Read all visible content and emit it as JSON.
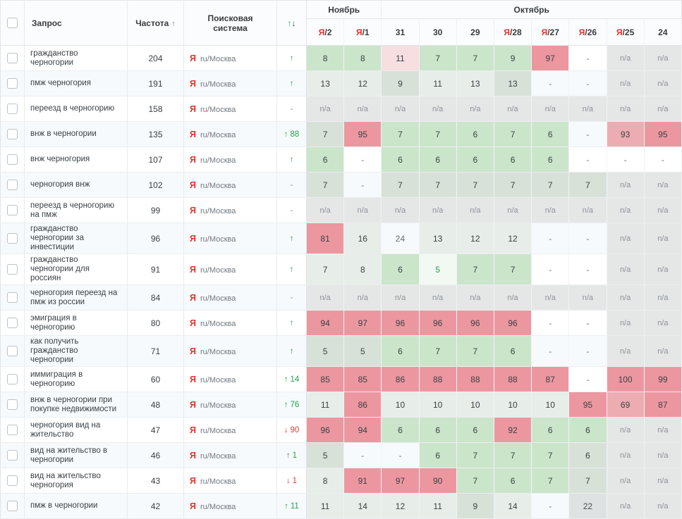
{
  "header": {
    "query": "Запрос",
    "frequency": "Частота",
    "frequency_sort_icon": "↑",
    "search_engine": "Поисковая система",
    "change_up_icon": "↑",
    "change_down_icon": "↓",
    "month_groups": [
      {
        "label": "Ноябрь",
        "span": 2
      },
      {
        "label": "Октябрь",
        "span": 8
      }
    ],
    "date_columns": [
      {
        "yandex_mark": "Я",
        "label": "/2"
      },
      {
        "yandex_mark": "Я",
        "label": "/1"
      },
      {
        "label": "31"
      },
      {
        "label": "30"
      },
      {
        "label": "29"
      },
      {
        "yandex_mark": "Я",
        "label": "/28"
      },
      {
        "yandex_mark": "Я",
        "label": "/27"
      },
      {
        "yandex_mark": "Я",
        "label": "/26"
      },
      {
        "yandex_mark": "Я",
        "label": "/25"
      },
      {
        "label": "24"
      }
    ]
  },
  "search_engine": {
    "icon": "Я",
    "label": "ru/Москва"
  },
  "colors": {
    "yandex_red": "#e0332c",
    "up_green": "#23a24b",
    "down_red": "#e23b3b",
    "pos_green": "#cbe5cb",
    "pos_sage": "#d8e1d8",
    "pos_pale": "#e7ede9",
    "pos_pink": "#f6dee1",
    "pos_red": "#ec97a0",
    "pos_lightred": "#edacb2",
    "na_gray": "#e5e7e7"
  },
  "rows": [
    {
      "query": "гражданство черногории",
      "frequency": "204",
      "change": {
        "dir": "up",
        "value": ""
      },
      "cells": [
        [
          "8",
          "g"
        ],
        [
          "8",
          "g"
        ],
        [
          "11",
          "pk"
        ],
        [
          "7",
          "g"
        ],
        [
          "7",
          "g"
        ],
        [
          "9",
          "g"
        ],
        [
          "97",
          "r"
        ],
        [
          "-",
          "w"
        ],
        [
          "n/a",
          "na"
        ],
        [
          "n/a",
          "na"
        ]
      ]
    },
    {
      "query": "пмж черногория",
      "frequency": "191",
      "change": {
        "dir": "up",
        "value": ""
      },
      "cells": [
        [
          "13",
          "p"
        ],
        [
          "12",
          "p"
        ],
        [
          "9",
          "s"
        ],
        [
          "11",
          "p"
        ],
        [
          "13",
          "p"
        ],
        [
          "13",
          "s"
        ],
        [
          "-",
          "w"
        ],
        [
          "-",
          "w"
        ],
        [
          "n/a",
          "na"
        ],
        [
          "n/a",
          "na"
        ]
      ]
    },
    {
      "query": "переезд в черногорию",
      "frequency": "158",
      "change": {
        "dir": "none",
        "value": ""
      },
      "cells": [
        [
          "n/a",
          "na"
        ],
        [
          "n/a",
          "na"
        ],
        [
          "n/a",
          "na"
        ],
        [
          "n/a",
          "na"
        ],
        [
          "n/a",
          "na"
        ],
        [
          "n/a",
          "na"
        ],
        [
          "n/a",
          "na"
        ],
        [
          "n/a",
          "na"
        ],
        [
          "n/a",
          "na"
        ],
        [
          "n/a",
          "na"
        ]
      ]
    },
    {
      "query": "внж в черногории",
      "frequency": "135",
      "change": {
        "dir": "up",
        "value": "88"
      },
      "cells": [
        [
          "7",
          "s"
        ],
        [
          "95",
          "r"
        ],
        [
          "7",
          "g"
        ],
        [
          "7",
          "g"
        ],
        [
          "6",
          "g"
        ],
        [
          "7",
          "g"
        ],
        [
          "6",
          "g"
        ],
        [
          "-",
          "w"
        ],
        [
          "93",
          "lr"
        ],
        [
          "95",
          "r"
        ]
      ]
    },
    {
      "query": "внж черногория",
      "frequency": "107",
      "change": {
        "dir": "up",
        "value": ""
      },
      "cells": [
        [
          "6",
          "g"
        ],
        [
          "-",
          "w"
        ],
        [
          "6",
          "g"
        ],
        [
          "6",
          "g"
        ],
        [
          "6",
          "g"
        ],
        [
          "6",
          "g"
        ],
        [
          "6",
          "g"
        ],
        [
          "-",
          "w"
        ],
        [
          "-",
          "w"
        ],
        [
          "-",
          "w"
        ]
      ]
    },
    {
      "query": "черногория внж",
      "frequency": "102",
      "change": {
        "dir": "none",
        "value": ""
      },
      "cells": [
        [
          "7",
          "s"
        ],
        [
          "-",
          "w"
        ],
        [
          "7",
          "s"
        ],
        [
          "7",
          "s"
        ],
        [
          "7",
          "s"
        ],
        [
          "7",
          "s"
        ],
        [
          "7",
          "s"
        ],
        [
          "7",
          "s"
        ],
        [
          "n/a",
          "na"
        ],
        [
          "n/a",
          "na"
        ]
      ]
    },
    {
      "query": "переезд в черногорию на пмж",
      "frequency": "99",
      "change": {
        "dir": "none",
        "value": ""
      },
      "cells": [
        [
          "n/a",
          "na"
        ],
        [
          "n/a",
          "na"
        ],
        [
          "n/a",
          "na"
        ],
        [
          "n/a",
          "na"
        ],
        [
          "n/a",
          "na"
        ],
        [
          "n/a",
          "na"
        ],
        [
          "n/a",
          "na"
        ],
        [
          "n/a",
          "na"
        ],
        [
          "n/a",
          "na"
        ],
        [
          "n/a",
          "na"
        ]
      ]
    },
    {
      "query": "гражданство черногории за инвестиции",
      "frequency": "96",
      "change": {
        "dir": "up",
        "value": ""
      },
      "cells": [
        [
          "81",
          "r"
        ],
        [
          "16",
          "p"
        ],
        [
          "24",
          "w"
        ],
        [
          "13",
          "p"
        ],
        [
          "12",
          "p"
        ],
        [
          "12",
          "p"
        ],
        [
          "-",
          "w"
        ],
        [
          "-",
          "w"
        ],
        [
          "n/a",
          "na"
        ],
        [
          "n/a",
          "na"
        ]
      ]
    },
    {
      "query": "гражданство черногории для россиян",
      "frequency": "91",
      "change": {
        "dir": "up",
        "value": ""
      },
      "cells": [
        [
          "7",
          "p"
        ],
        [
          "8",
          "p"
        ],
        [
          "6",
          "g"
        ],
        [
          "5",
          "wg"
        ],
        [
          "7",
          "g"
        ],
        [
          "7",
          "g"
        ],
        [
          "-",
          "w"
        ],
        [
          "-",
          "w"
        ],
        [
          "n/a",
          "na"
        ],
        [
          "n/a",
          "na"
        ]
      ]
    },
    {
      "query": "черногория переезд на пмж из россии",
      "frequency": "84",
      "change": {
        "dir": "none",
        "value": ""
      },
      "cells": [
        [
          "n/a",
          "na"
        ],
        [
          "n/a",
          "na"
        ],
        [
          "n/a",
          "na"
        ],
        [
          "n/a",
          "na"
        ],
        [
          "n/a",
          "na"
        ],
        [
          "n/a",
          "na"
        ],
        [
          "n/a",
          "na"
        ],
        [
          "n/a",
          "na"
        ],
        [
          "n/a",
          "na"
        ],
        [
          "n/a",
          "na"
        ]
      ]
    },
    {
      "query": "эмиграция в черногорию",
      "frequency": "80",
      "change": {
        "dir": "up",
        "value": ""
      },
      "cells": [
        [
          "94",
          "r"
        ],
        [
          "97",
          "r"
        ],
        [
          "96",
          "r"
        ],
        [
          "96",
          "r"
        ],
        [
          "96",
          "r"
        ],
        [
          "96",
          "r"
        ],
        [
          "-",
          "w"
        ],
        [
          "-",
          "w"
        ],
        [
          "n/a",
          "na"
        ],
        [
          "n/a",
          "na"
        ]
      ]
    },
    {
      "query": "как получить гражданство черногории",
      "frequency": "71",
      "change": {
        "dir": "up",
        "value": ""
      },
      "cells": [
        [
          "5",
          "s"
        ],
        [
          "5",
          "s"
        ],
        [
          "6",
          "g"
        ],
        [
          "7",
          "g"
        ],
        [
          "7",
          "g"
        ],
        [
          "6",
          "g"
        ],
        [
          "-",
          "w"
        ],
        [
          "-",
          "w"
        ],
        [
          "n/a",
          "na"
        ],
        [
          "n/a",
          "na"
        ]
      ]
    },
    {
      "query": "иммиграция в черногорию",
      "frequency": "60",
      "change": {
        "dir": "up",
        "value": "14"
      },
      "cells": [
        [
          "85",
          "r"
        ],
        [
          "85",
          "r"
        ],
        [
          "86",
          "r"
        ],
        [
          "88",
          "r"
        ],
        [
          "88",
          "r"
        ],
        [
          "88",
          "r"
        ],
        [
          "87",
          "r"
        ],
        [
          "-",
          "w"
        ],
        [
          "100",
          "r"
        ],
        [
          "99",
          "r"
        ]
      ]
    },
    {
      "query": "внж в черногории при покупке недвижимости",
      "frequency": "48",
      "change": {
        "dir": "up",
        "value": "76"
      },
      "cells": [
        [
          "11",
          "p"
        ],
        [
          "86",
          "r"
        ],
        [
          "10",
          "p"
        ],
        [
          "10",
          "p"
        ],
        [
          "10",
          "p"
        ],
        [
          "10",
          "p"
        ],
        [
          "10",
          "p"
        ],
        [
          "95",
          "r"
        ],
        [
          "69",
          "lr"
        ],
        [
          "87",
          "r"
        ]
      ]
    },
    {
      "query": "черногория вид на жительство",
      "frequency": "47",
      "change": {
        "dir": "down",
        "value": "90"
      },
      "cells": [
        [
          "96",
          "r"
        ],
        [
          "94",
          "r"
        ],
        [
          "6",
          "g"
        ],
        [
          "6",
          "g"
        ],
        [
          "6",
          "g"
        ],
        [
          "92",
          "r"
        ],
        [
          "6",
          "g"
        ],
        [
          "6",
          "g"
        ],
        [
          "n/a",
          "na"
        ],
        [
          "n/a",
          "na"
        ]
      ]
    },
    {
      "query": "вид на жительство в черногории",
      "frequency": "46",
      "change": {
        "dir": "up",
        "value": "1"
      },
      "cells": [
        [
          "5",
          "s"
        ],
        [
          "-",
          "w"
        ],
        [
          "-",
          "w"
        ],
        [
          "6",
          "g"
        ],
        [
          "7",
          "g"
        ],
        [
          "7",
          "g"
        ],
        [
          "7",
          "g"
        ],
        [
          "6",
          "s"
        ],
        [
          "n/a",
          "na"
        ],
        [
          "n/a",
          "na"
        ]
      ]
    },
    {
      "query": "вид на жительство черногория",
      "frequency": "43",
      "change": {
        "dir": "down",
        "value": "1"
      },
      "cells": [
        [
          "8",
          "p"
        ],
        [
          "91",
          "r"
        ],
        [
          "97",
          "r"
        ],
        [
          "90",
          "r"
        ],
        [
          "7",
          "g"
        ],
        [
          "6",
          "g"
        ],
        [
          "7",
          "g"
        ],
        [
          "7",
          "s"
        ],
        [
          "n/a",
          "na"
        ],
        [
          "n/a",
          "na"
        ]
      ]
    },
    {
      "query": "пмж в черногории",
      "frequency": "42",
      "change": {
        "dir": "up",
        "value": "11"
      },
      "cells": [
        [
          "11",
          "p"
        ],
        [
          "14",
          "p"
        ],
        [
          "12",
          "p"
        ],
        [
          "11",
          "p"
        ],
        [
          "9",
          "s"
        ],
        [
          "14",
          "p"
        ],
        [
          "-",
          "w"
        ],
        [
          "22",
          "gr"
        ],
        [
          "n/a",
          "na"
        ],
        [
          "n/a",
          "na"
        ]
      ]
    }
  ]
}
